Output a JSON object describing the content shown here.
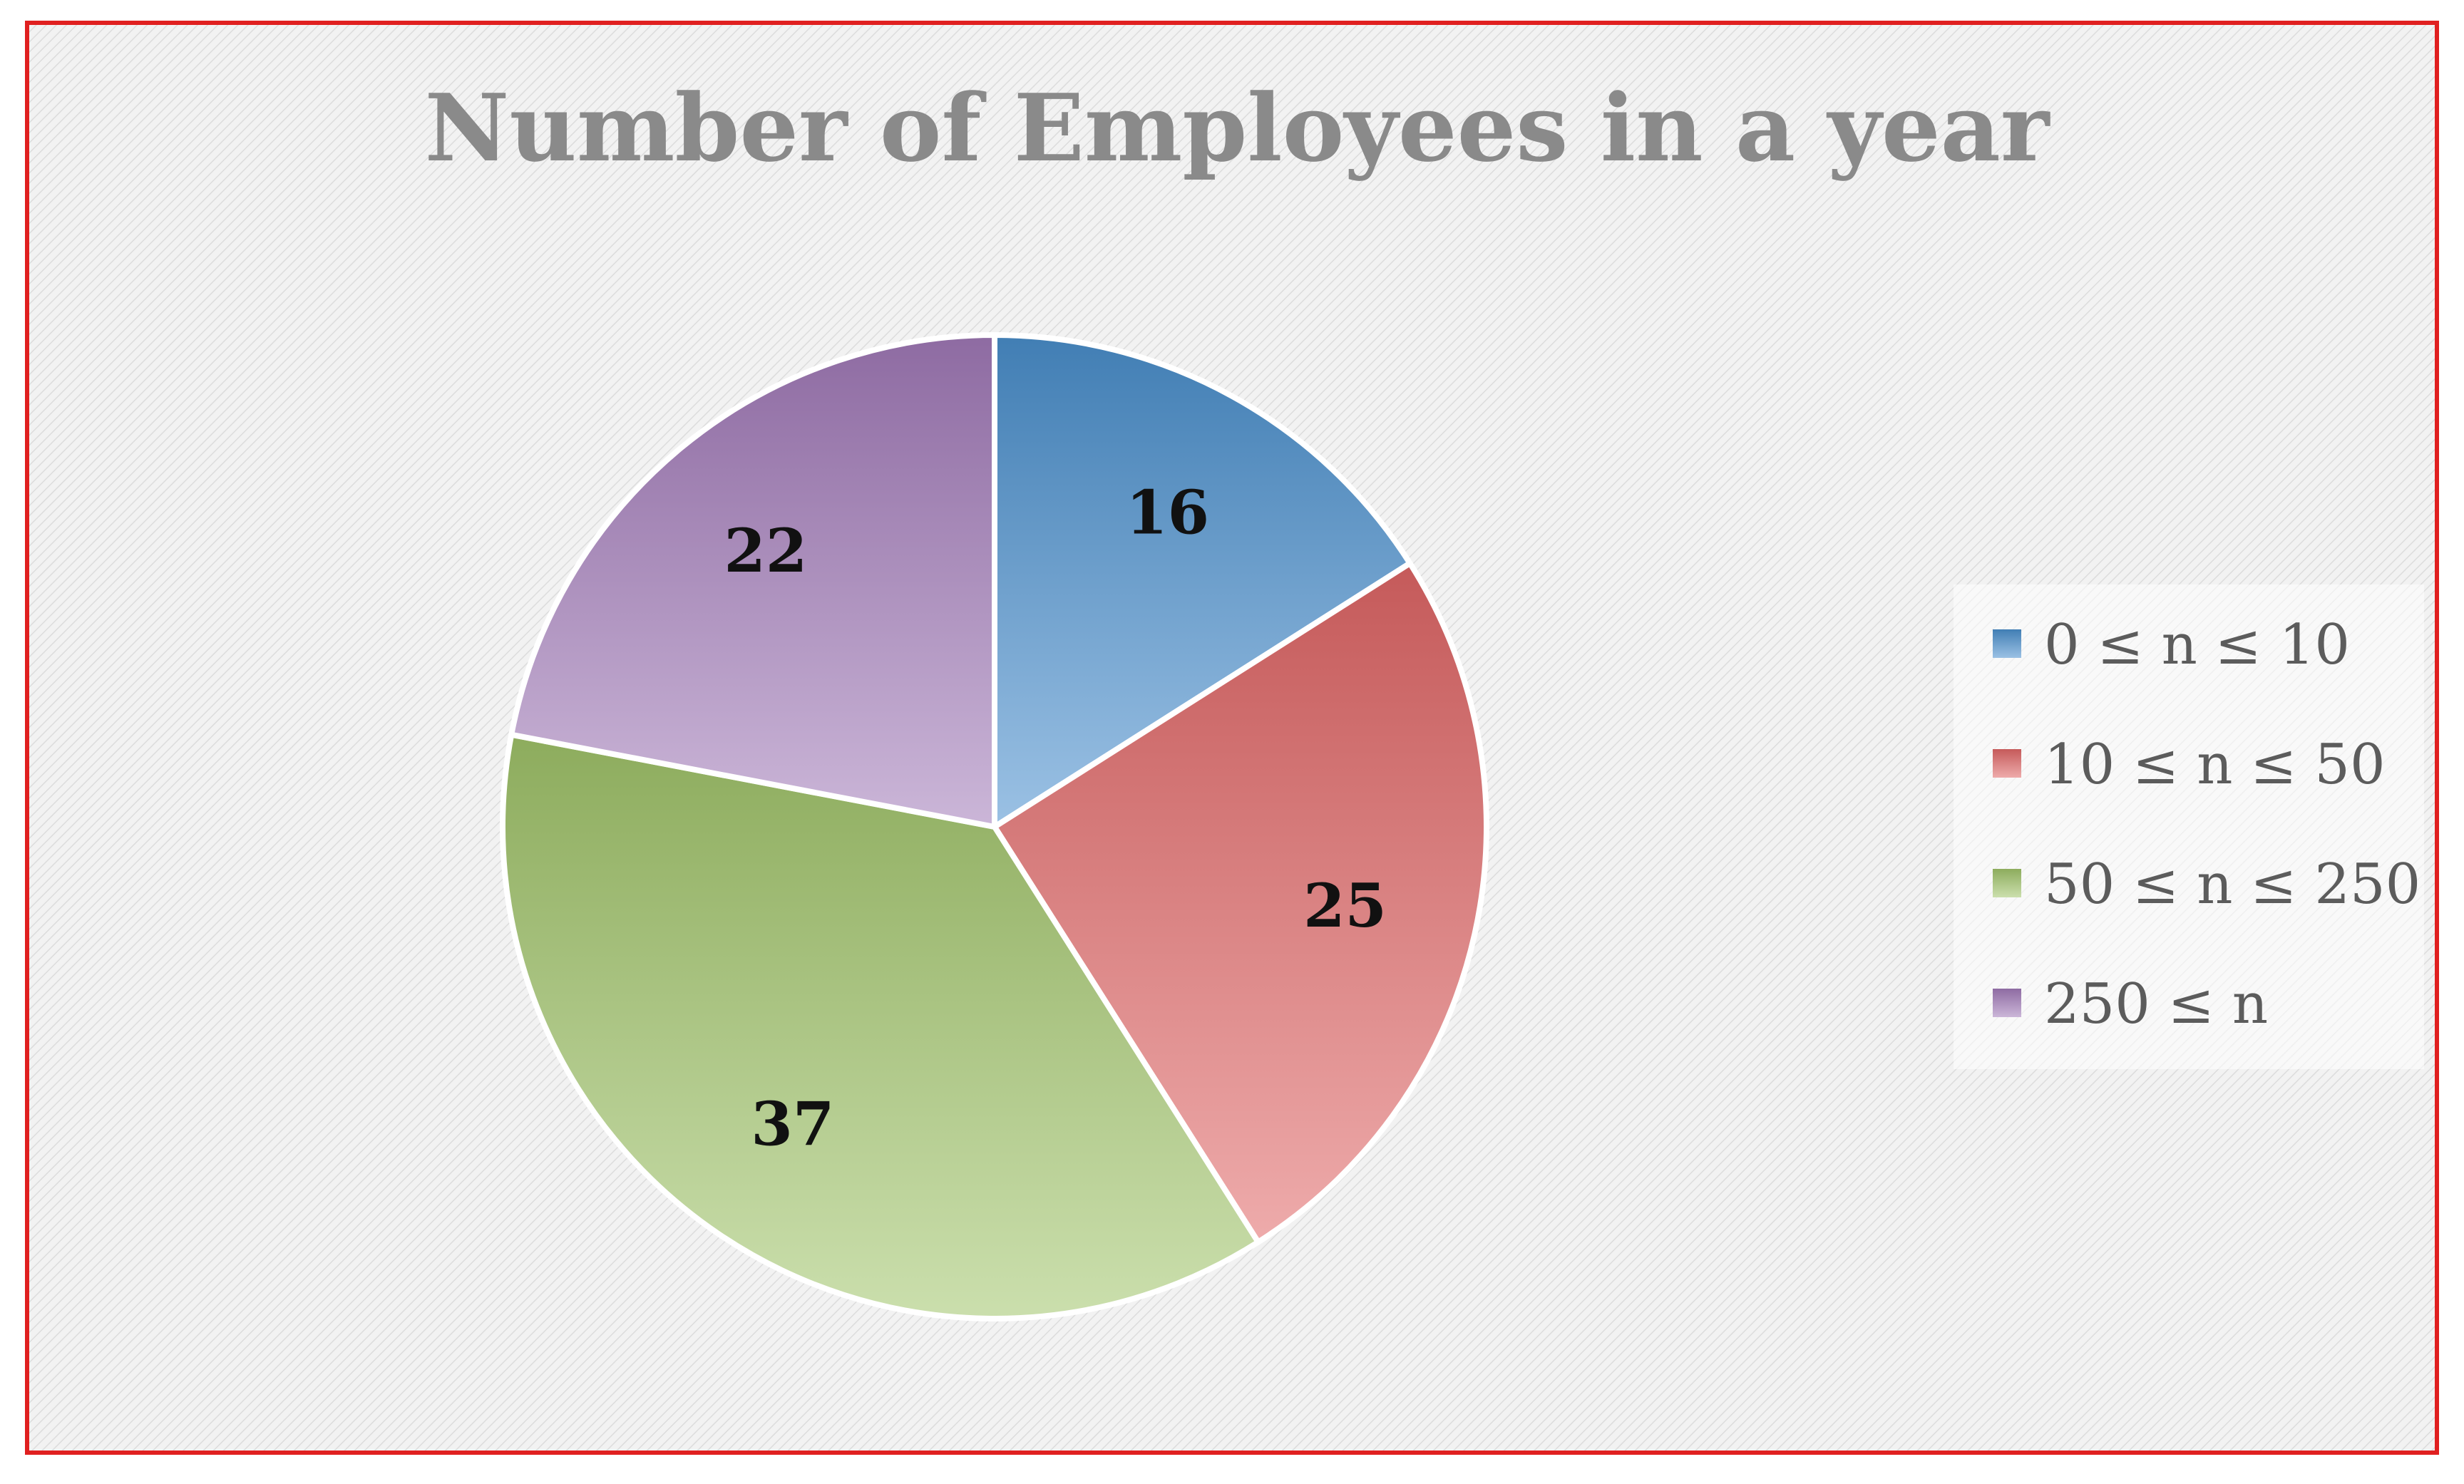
{
  "chart_data": {
    "type": "pie",
    "title": "Number of Employees in a year",
    "slices": [
      {
        "label": "0 ≤ n ≤ 10",
        "value": 16,
        "color": "#4a8fcd"
      },
      {
        "label": "10 ≤ n ≤ 50",
        "value": 25,
        "color": "#e06666"
      },
      {
        "label": "50 ≤ n ≤ 250",
        "value": 37,
        "color": "#a0c46a"
      },
      {
        "label": "250 ≤ n",
        "value": 22,
        "color": "#a17ab8"
      }
    ],
    "data_labels": true,
    "legend_position": "right",
    "start_angle_deg": 0,
    "direction": "clockwise"
  },
  "colors": {
    "frame_border": "#e02020",
    "title_color": "#8a8a8a",
    "label_color": "#111111",
    "legend_text": "#5c5c5c",
    "slice_stroke": "#ffffff"
  }
}
